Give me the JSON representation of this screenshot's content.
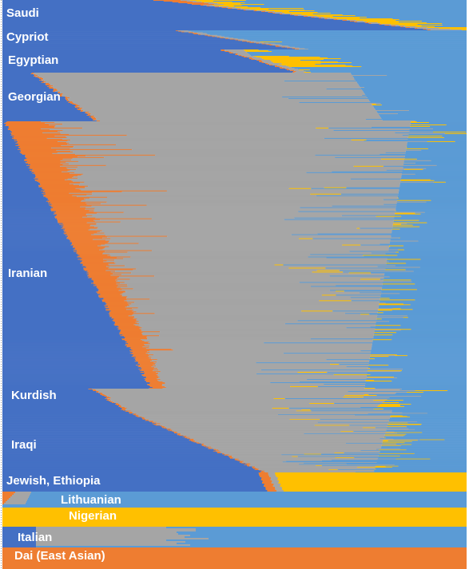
{
  "chart_data": {
    "type": "bar",
    "orientation": "horizontal-stacked",
    "colors": {
      "blue": "#4470c4",
      "orange": "#ee7d31",
      "gray": "#a5a5a5",
      "yellow": "#ffc000",
      "lightblue": "#5b9bd5"
    },
    "component_order": [
      "blue",
      "orange",
      "gray",
      "yellow",
      "lightblue"
    ],
    "groups": [
      {
        "name": "Saudi",
        "label": "Saudi",
        "rows": 38,
        "start": [
          0.33,
          0.07
        ],
        "end": [
          0.92,
          0.99
        ],
        "noise_prob": 0.08,
        "scatter_yellow": 0.35
      },
      {
        "name": "Cypriot",
        "label": "Cypriot",
        "rows": 29,
        "start": [
          0.37,
          0.4
        ],
        "end": [
          0.63,
          0.58
        ],
        "noise_prob": 0.12,
        "scatter_yellow": 0.05
      },
      {
        "name": "Egyptian",
        "label": "Egyptian",
        "rows": 29,
        "start": [
          0.47,
          0.52
        ],
        "end": [
          0.63,
          0.58
        ],
        "noise_prob": 0.1,
        "scatter_yellow": 0.4
      },
      {
        "name": "Georgian",
        "label": "Georgian",
        "rows": 61,
        "start": [
          0.06,
          0.75
        ],
        "end": [
          0.2,
          0.82
        ],
        "noise_prob": 0.18,
        "scatter_yellow": 0.05
      },
      {
        "name": "Iranian",
        "label": "Iranian",
        "rows": 336,
        "start": [
          0.005,
          0.88
        ],
        "end": [
          0.32,
          0.78
        ],
        "noise_prob": 0.28,
        "scatter_yellow": 0.3
      },
      {
        "name": "Kurdish",
        "label": "Kurdish",
        "rows": 26,
        "start": [
          0.19,
          0.86
        ],
        "end": [
          0.26,
          0.8
        ],
        "noise_prob": 0.35,
        "scatter_yellow": 0.5
      },
      {
        "name": "Iraqi",
        "label": "Iraqi",
        "rows": 105,
        "start": [
          0.26,
          0.84
        ],
        "end": [
          0.56,
          0.8
        ],
        "noise_prob": 0.35,
        "scatter_yellow": 0.4
      },
      {
        "name": "Jewish, Ethiopia",
        "label": "Jewish, Ethiopia",
        "rows": 24,
        "start": [
          0.56,
          0.59
        ],
        "end": [
          0.57,
          0.6
        ],
        "noise_prob": 0.0,
        "scatter_yellow": 0.0
      },
      {
        "name": "Lithuanian",
        "label": "Lithuanian",
        "rows": 20,
        "start": [
          0.0,
          0.0
        ],
        "end": [
          0.0,
          0.0
        ],
        "noise_prob": 0.0,
        "scatter_yellow": 0.0
      },
      {
        "name": "Nigerian",
        "label": "Nigerian",
        "rows": 24,
        "start": [
          0.0,
          0.0
        ],
        "end": [
          0.0,
          0.0
        ],
        "noise_prob": 0.0,
        "scatter_yellow": 0.0
      },
      {
        "name": "Italian",
        "label": "Italian",
        "rows": 24,
        "start": [
          0.0,
          0.0
        ],
        "end": [
          0.0,
          0.0
        ],
        "noise_prob": 0.0,
        "scatter_yellow": 0.0
      },
      {
        "name": "Dai (East Asian)",
        "label": "Dai (East Asian)",
        "rows": 23,
        "start": [
          0.0,
          0.0
        ],
        "end": [
          0.0,
          0.0
        ],
        "noise_prob": 0.0,
        "scatter_yellow": 0.0
      }
    ],
    "xlim": [
      0,
      1
    ]
  }
}
